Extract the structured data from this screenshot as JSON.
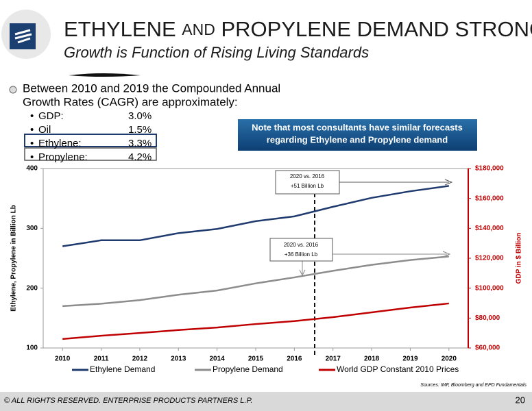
{
  "slide": {
    "title_main": "ETHYLENE",
    "title_and": "AND",
    "title_rest": "PROPYLENE DEMAND STRONG",
    "subtitle": "Growth is Function of Rising Living Standards",
    "bullet_intro": [
      "Between 2010 and 2019 the Compounded Annual",
      "Growth Rates (CAGR) are approximately:"
    ],
    "bullets": [
      {
        "label": "GDP:",
        "value": "3.0%"
      },
      {
        "label": "Oil",
        "value": "1.5%"
      },
      {
        "label": "Ethylene:",
        "value": "3.3%"
      },
      {
        "label": "Propylene:",
        "value": "4.2%"
      }
    ],
    "note": [
      "Note that most consultants have similar forecasts",
      "regarding Ethylene and Propylene demand"
    ],
    "sources": "Sources:  IMF, Bloomberg and EPD Fundamentals",
    "footer": "© ALL RIGHTS RESERVED. ENTERPRISE PRODUCTS PARTNERS L.P.",
    "page_number": "20"
  },
  "chart_data": {
    "type": "line",
    "ylabel": "Ethylene, Propylene in Billion Lb",
    "y2label": "GDP in $ Billion",
    "x": [
      2010,
      2011,
      2012,
      2013,
      2014,
      2015,
      2016,
      2017,
      2018,
      2019,
      2020
    ],
    "xlim": [
      2009.5,
      2020.5
    ],
    "xticks": [
      2010,
      2011,
      2012,
      2013,
      2014,
      2015,
      2016,
      2017,
      2018,
      2019,
      2020
    ],
    "ylim": [
      100,
      400
    ],
    "yticks": [
      100,
      200,
      300,
      400
    ],
    "y2lim": [
      60000,
      180000
    ],
    "y2ticks": [
      {
        "value": 60000,
        "label": "$60,000"
      },
      {
        "value": 80000,
        "label": "$80,000"
      },
      {
        "value": 100000,
        "label": "$100,000"
      },
      {
        "value": 120000,
        "label": "$120,000"
      },
      {
        "value": 140000,
        "label": "$140,000"
      },
      {
        "value": 160000,
        "label": "$160,000"
      },
      {
        "value": 180000,
        "label": "$180,000"
      }
    ],
    "series": [
      {
        "name": "Ethylene Demand",
        "color": "#1f3a6e",
        "values": [
          270,
          280,
          280,
          292,
          299,
          312,
          320,
          336,
          351,
          362,
          371
        ]
      },
      {
        "name": "Propylene Demand",
        "color": "#8c8c8c",
        "values": [
          170,
          174,
          180,
          189,
          196,
          208,
          218,
          229,
          239,
          247,
          253
        ]
      },
      {
        "name": "World GDP Constant 2010 Prices",
        "color": "#c00000",
        "axis": "y2",
        "values": [
          66000,
          68200,
          70000,
          72000,
          73700,
          76000,
          78000,
          80600,
          83800,
          87000,
          89800
        ]
      }
    ],
    "annotations": [
      {
        "lines": [
          "2020 vs. 2016",
          "+51 Billion Lb"
        ]
      },
      {
        "lines": [
          "2020 vs. 2016",
          "+36 Billion Lb"
        ]
      }
    ]
  }
}
